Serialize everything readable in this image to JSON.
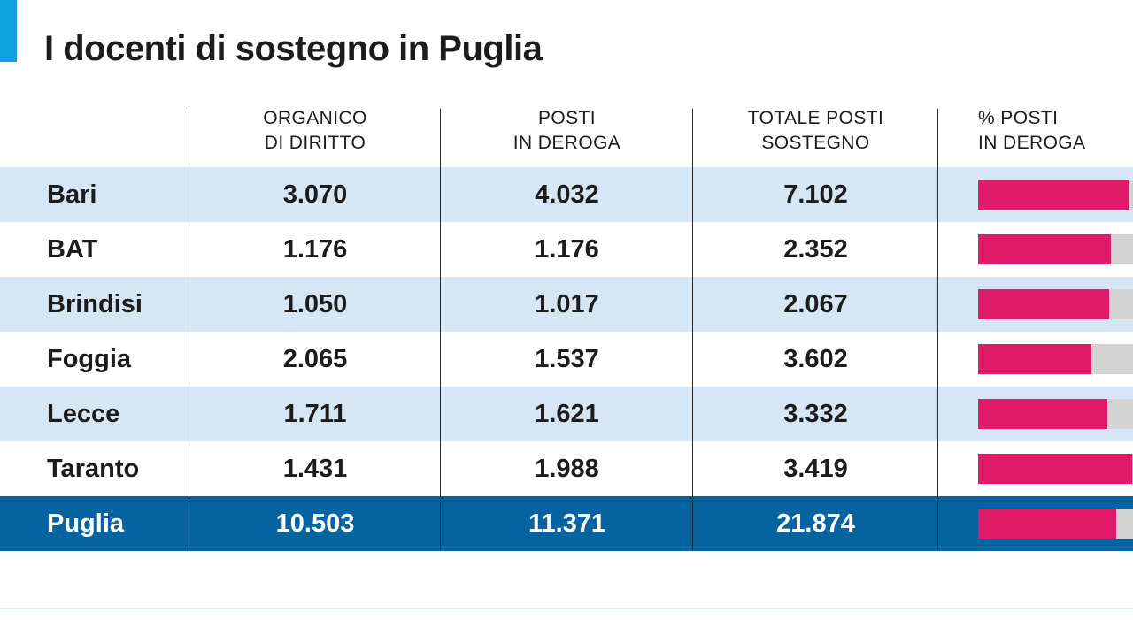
{
  "title": "I docenti di sostegno in Puglia",
  "colors": {
    "accent": "#0fa0e0",
    "row_alt": "#d6e6f5",
    "row_plain": "#ffffff",
    "total_row": "#0564a0",
    "bar": "#e01b69",
    "bar_track": "#d3d3d3"
  },
  "chart_data": {
    "type": "table",
    "columns": [
      {
        "line1": "ORGANICO",
        "line2": "DI DIRITTO"
      },
      {
        "line1": "POSTI",
        "line2": "IN DEROGA"
      },
      {
        "line1": "TOTALE POSTI",
        "line2": "SOSTEGNO"
      },
      {
        "line1": "% POSTI",
        "line2": "IN DEROGA"
      }
    ],
    "rows": [
      {
        "name": "Bari",
        "organico": "3.070",
        "deroga": "4.032",
        "totale": "7.102",
        "pct_deroga": 56.8
      },
      {
        "name": "BAT",
        "organico": "1.176",
        "deroga": "1.176",
        "totale": "2.352",
        "pct_deroga": 50.0
      },
      {
        "name": "Brindisi",
        "organico": "1.050",
        "deroga": "1.017",
        "totale": "2.067",
        "pct_deroga": 49.2
      },
      {
        "name": "Foggia",
        "organico": "2.065",
        "deroga": "1.537",
        "totale": "3.602",
        "pct_deroga": 42.7
      },
      {
        "name": "Lecce",
        "organico": "1.711",
        "deroga": "1.621",
        "totale": "3.332",
        "pct_deroga": 48.6
      },
      {
        "name": "Taranto",
        "organico": "1.431",
        "deroga": "1.988",
        "totale": "3.419",
        "pct_deroga": 58.1
      }
    ],
    "total": {
      "name": "Puglia",
      "organico": "10.503",
      "deroga": "11.371",
      "totale": "21.874",
      "pct_deroga": 52.0
    }
  }
}
